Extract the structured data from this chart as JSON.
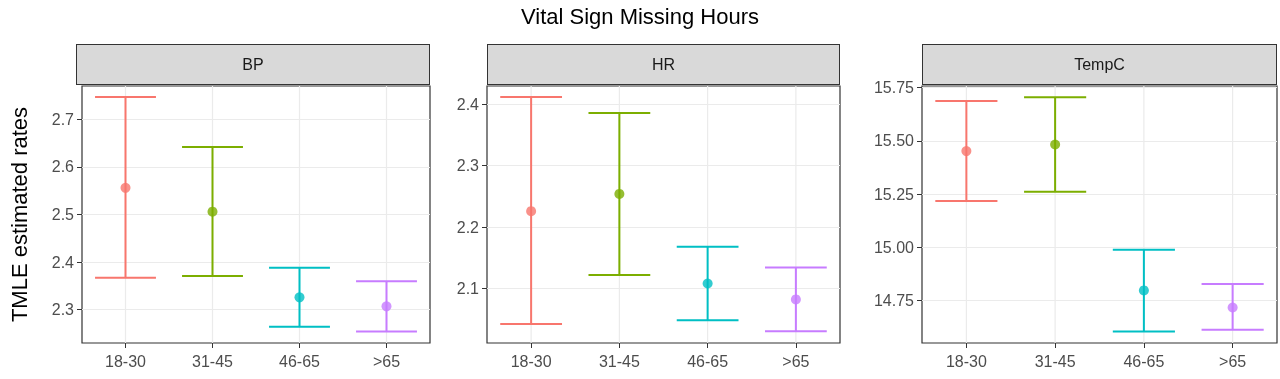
{
  "chart_data": [
    {
      "type": "scatter",
      "title": "BP",
      "ylabel": "TMLE estimated rates",
      "annotations": [
        "Vital Sign Missing Hours"
      ],
      "categories": [
        "18-30",
        "31-45",
        "46-65",
        ">65"
      ],
      "values": [
        2.556,
        2.506,
        2.326,
        2.307
      ],
      "colors": [
        "#f8766d",
        "#7cae00",
        "#00bfc4",
        "#c77cff"
      ],
      "errors": [
        [
          2.367,
          2.747
        ],
        [
          2.371,
          2.642
        ],
        [
          2.264,
          2.388
        ],
        [
          2.254,
          2.36
        ]
      ],
      "ylim": [
        2.23,
        2.77
      ],
      "yticks": [
        2.3,
        2.4,
        2.5,
        2.6,
        2.7
      ],
      "grid": true,
      "marker": "circle"
    },
    {
      "type": "scatter",
      "title": "HR",
      "categories": [
        "18-30",
        "31-45",
        "46-65",
        ">65"
      ],
      "values": [
        2.226,
        2.254,
        2.108,
        2.082
      ],
      "colors": [
        "#f8766d",
        "#7cae00",
        "#00bfc4",
        "#c77cff"
      ],
      "errors": [
        [
          2.042,
          2.412
        ],
        [
          2.122,
          2.386
        ],
        [
          2.048,
          2.168
        ],
        [
          2.03,
          2.134
        ]
      ],
      "ylim": [
        2.011,
        2.43
      ],
      "yticks": [
        2.1,
        2.2,
        2.3,
        2.4
      ],
      "grid": true,
      "marker": "circle"
    },
    {
      "type": "scatter",
      "title": "TempC",
      "categories": [
        "18-30",
        "31-45",
        "46-65",
        ">65"
      ],
      "values": [
        15.452,
        15.483,
        14.797,
        14.717
      ],
      "colors": [
        "#f8766d",
        "#7cae00",
        "#00bfc4",
        "#c77cff"
      ],
      "errors": [
        [
          15.217,
          15.687
        ],
        [
          15.261,
          15.705
        ],
        [
          14.604,
          14.988
        ],
        [
          14.612,
          14.827
        ]
      ],
      "ylim": [
        14.55,
        15.758
      ],
      "yticks": [
        14.75,
        {
          "value": 15,
          "label": "15.00"
        },
        15.25,
        {
          "value": 15.5,
          "label": "15.50"
        },
        15.75
      ],
      "grid": true,
      "marker": "circle"
    }
  ]
}
